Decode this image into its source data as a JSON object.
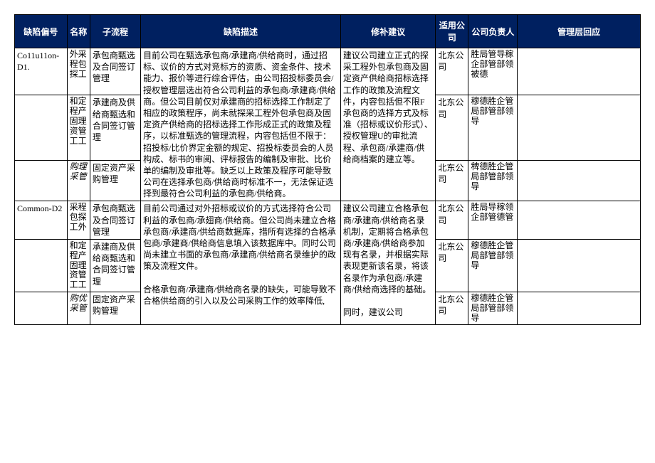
{
  "headers": {
    "id": "缺陷偏号",
    "name": "名称",
    "sub": "子流程",
    "desc": "缺陷描述",
    "sugg": "修补建议",
    "comp": "适用公司",
    "resp": "公司负责人",
    "mgmt": "管理层回应"
  },
  "colors": {
    "header_bg": "#002060",
    "header_fg": "#ffffff",
    "border": "#000000"
  },
  "rows": [
    {
      "id": "Co11u11on-D1.",
      "name": "外采程包探工",
      "sub": "承包商甄选及合同签订管理",
      "desc_span": 3,
      "desc": "目前公司在甄选承包商/承建商/供给商时，通过招标、议价的方式对竞标方的资质、资金条件、技术能力、报价等进行综合评估，由公司招投标委员会/授权管理层选出符合公司利益的承包商/承建商/供给商。但公司目前仅对承建商的招标选择工作制定了相应的政策程序，尚未就探采工程外包承包商及固定资产供给商的招标选择工作形成正式的政策及程序，以标准甄选的管理流程，内容包括但不限于：招投标/比价界定金额的规定、招投标委员会的人员构成、标书的审阅、评标报告的编制及审批、比价单的编制及审批等。缺乏以上政策及程序可能导致公司在选择承包商/供给商时标准不一，无法保证选择到最符合公司利益的承包商/供给商。",
      "sugg_span": 3,
      "sugg": "建议公司建立正式的探采工程外包承包商及固定资产供给商招标选择工作的政策及流程文件，内容包括但不限F承包商的选择方式及标准（招标或议价形式）、授权管理U的审批流程、承包商/承建商/供给商档案的建立等。",
      "comp": "北东公司",
      "resp": "胜局管导稼企部管部领被德"
    },
    {
      "id": "",
      "name": "和定程产固理资管工工",
      "sub": "承建商及供给商甄选和合同签订管理",
      "comp": "北东公司",
      "resp": "穆德胜企管局部管部领导"
    },
    {
      "id": "",
      "name": "购理采管",
      "name_italic": true,
      "sub": "固定资产采购管理",
      "comp": "北东公司",
      "resp": "稗德胜企管局部管部领导"
    },
    {
      "id": "Common-D2",
      "name": "采程包探工外",
      "sub": "承包商甄选及合同签订管理",
      "desc_span": 3,
      "desc": "目前公司通过对外招标或议价的方式选择符合公司利益的承包商/承翅商/供给商。但公司尚未建立合格承包商/承建商/供给商数据库，措所有选择的合格承包商/承建商/供给商信息填入该数据库中。同时公司尚未建立书面的承包商/承建商/供给商名录维护的政策及流程文件。\n\n合格承包商/承建商/供给商名录的缺失，可能导致不合格供给商的引入以及公司采购工作的效率降低,",
      "sugg_span": 3,
      "sugg": "建议公司建立合格承包商/承建商/供给商名录机制，定期将合格承包商/承建商/供给商参加现有名录，并根据实际表现更新该名录，将该名录作为承包商/承建商/供给商选择的基础。\n\n同时，建议公司",
      "comp": "北东公司",
      "resp": "胜局导稼领企部管德管"
    },
    {
      "id": "",
      "name": "和定程产固理资管工工",
      "sub": "承建商及供给商甄选和合同签订管理",
      "comp": "北东公司",
      "resp": "穆德胜企管局部管部领导"
    },
    {
      "id": "",
      "name": "购优采管",
      "name_italic": true,
      "sub": "固定资产采购管理",
      "comp": "北东公司",
      "resp": "穆德胜企管局部管部领导"
    }
  ]
}
